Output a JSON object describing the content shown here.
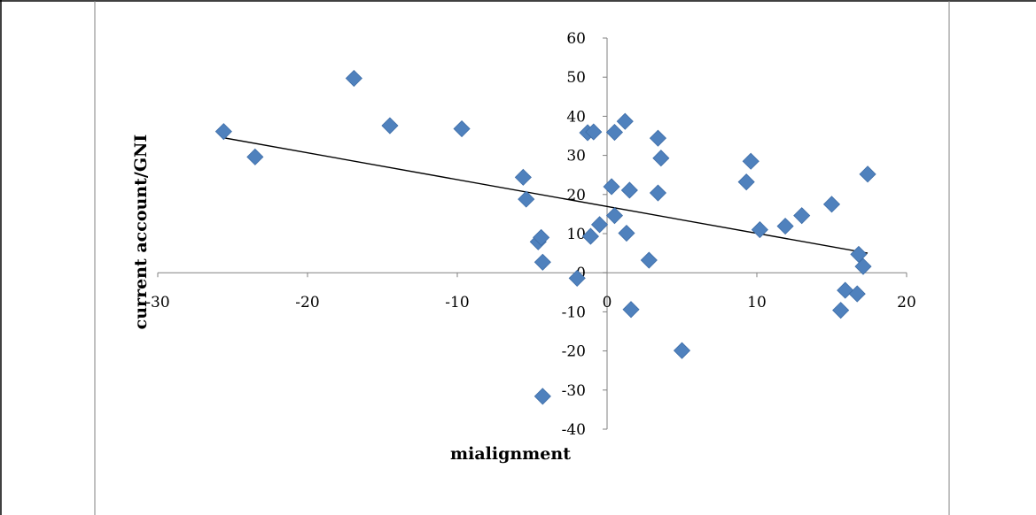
{
  "chart_data": {
    "type": "scatter",
    "title": "",
    "xlabel": "mialignment",
    "ylabel": "current account/GNI",
    "xlim": [
      -30,
      20
    ],
    "ylim": [
      -40,
      60
    ],
    "x_ticks": [
      "-30",
      "-20",
      "-10",
      "0",
      "10",
      "20"
    ],
    "y_ticks": [
      "-40",
      "-30",
      "-20",
      "-10",
      "0",
      "10",
      "20",
      "30",
      "40",
      "50",
      "60"
    ],
    "grid": false,
    "legend": "none",
    "marker_color": "#4f81bd",
    "trendline": {
      "type": "linear",
      "x": [
        -25.6,
        17.4
      ],
      "y": [
        34.5,
        5.0
      ]
    },
    "series": [
      {
        "points": [
          [
            -25.6,
            36.1
          ],
          [
            -23.5,
            29.6
          ],
          [
            -16.9,
            49.7
          ],
          [
            -14.5,
            37.6
          ],
          [
            -9.7,
            36.8
          ],
          [
            -5.6,
            24.4
          ],
          [
            -5.4,
            18.8
          ],
          [
            -4.6,
            7.9
          ],
          [
            -4.4,
            9.0
          ],
          [
            -4.3,
            2.7
          ],
          [
            -4.3,
            -31.6
          ],
          [
            -2.0,
            -1.4
          ],
          [
            -1.3,
            35.8
          ],
          [
            -0.9,
            36.0
          ],
          [
            -1.1,
            9.3
          ],
          [
            -0.5,
            12.3
          ],
          [
            0.3,
            22.0
          ],
          [
            0.5,
            35.9
          ],
          [
            0.5,
            14.6
          ],
          [
            1.2,
            38.7
          ],
          [
            1.3,
            10.1
          ],
          [
            1.5,
            21.1
          ],
          [
            1.6,
            -9.4
          ],
          [
            2.8,
            3.2
          ],
          [
            3.4,
            34.4
          ],
          [
            3.4,
            20.4
          ],
          [
            3.6,
            29.3
          ],
          [
            5.0,
            -19.9
          ],
          [
            9.3,
            23.2
          ],
          [
            9.6,
            28.5
          ],
          [
            10.2,
            11.0
          ],
          [
            11.9,
            11.9
          ],
          [
            13.0,
            14.6
          ],
          [
            15.0,
            17.5
          ],
          [
            15.6,
            -9.6
          ],
          [
            15.9,
            -4.5
          ],
          [
            16.7,
            -5.4
          ],
          [
            16.8,
            4.7
          ],
          [
            17.1,
            1.6
          ],
          [
            17.4,
            25.2
          ]
        ]
      }
    ]
  }
}
